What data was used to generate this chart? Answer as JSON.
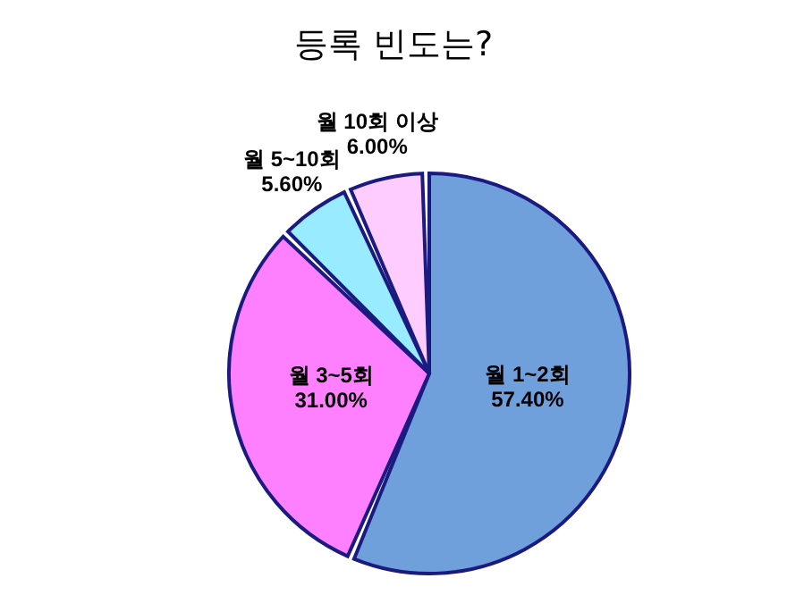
{
  "chart_data": {
    "type": "pie",
    "title": "등록 빈도는?",
    "categories": [
      "월 1~2회",
      "월 3~5회",
      "월 5~10회",
      "월 10회 이상"
    ],
    "values": [
      57.4,
      31.0,
      5.6,
      6.0
    ],
    "value_labels": [
      "57.40%",
      "31.00%",
      "5.60%",
      "6.00%"
    ],
    "colors": [
      "#6fa0dc",
      "#ff80ff",
      "#99ecff",
      "#ffccff"
    ],
    "legend": false
  }
}
